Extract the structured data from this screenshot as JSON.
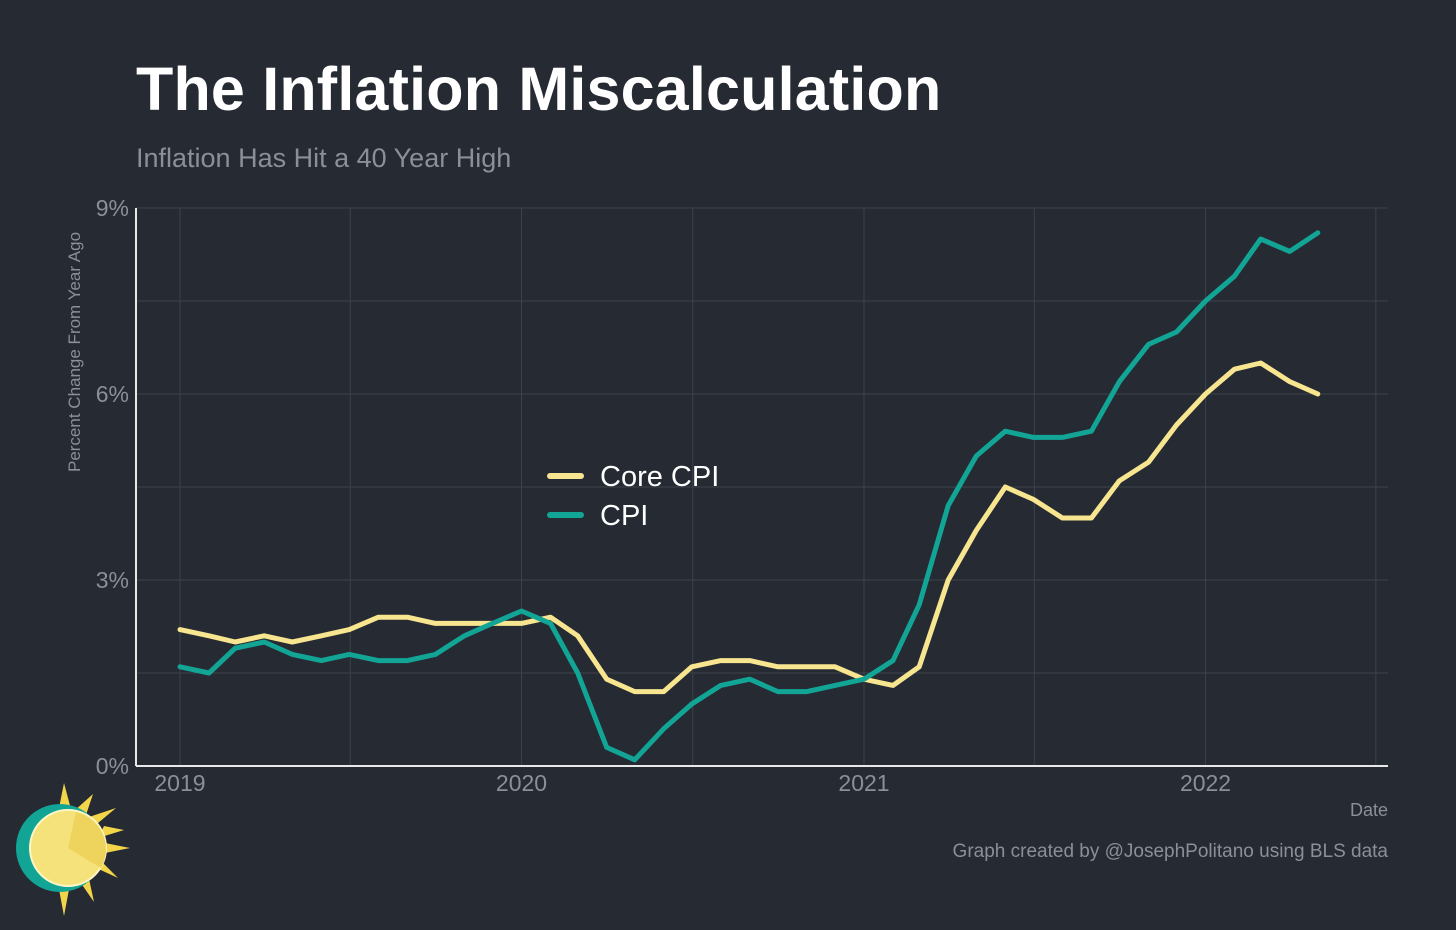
{
  "title": "The Inflation Miscalculation",
  "subtitle": "Inflation Has Hit a 40 Year High",
  "caption": "Graph created by @JosephPolitano using BLS data",
  "chart_data": {
    "type": "line",
    "xlabel": "Date",
    "ylabel": "Percent Change From Year Ago",
    "x_start": "2019-01",
    "x_end": "2022-05",
    "xlim": [
      "2018-11-15",
      "2022-07-15"
    ],
    "ylim": [
      0,
      9
    ],
    "yticks": [
      0,
      3,
      6,
      9
    ],
    "ytick_labels": [
      "0%",
      "3%",
      "6%",
      "9%"
    ],
    "xticks": [
      "2019-01-01",
      "2020-01-01",
      "2021-01-01",
      "2022-01-01"
    ],
    "xtick_labels": [
      "2019",
      "2020",
      "2021",
      "2022"
    ],
    "grid": true,
    "legend_position": "center",
    "series": [
      {
        "name": "Core CPI",
        "color": "#f8e58f",
        "values": [
          2.2,
          2.1,
          2.0,
          2.1,
          2.0,
          2.1,
          2.2,
          2.4,
          2.4,
          2.3,
          2.3,
          2.3,
          2.3,
          2.4,
          2.1,
          1.4,
          1.2,
          1.2,
          1.6,
          1.7,
          1.7,
          1.6,
          1.6,
          1.6,
          1.4,
          1.3,
          1.6,
          3.0,
          3.8,
          4.5,
          4.3,
          4.0,
          4.0,
          4.6,
          4.9,
          5.5,
          6.0,
          6.4,
          6.5,
          6.2,
          6.0
        ]
      },
      {
        "name": "CPI",
        "color": "#12a596",
        "values": [
          1.6,
          1.5,
          1.9,
          2.0,
          1.8,
          1.7,
          1.8,
          1.7,
          1.7,
          1.8,
          2.1,
          2.3,
          2.5,
          2.3,
          1.5,
          0.3,
          0.1,
          0.6,
          1.0,
          1.3,
          1.4,
          1.2,
          1.2,
          1.3,
          1.4,
          1.7,
          2.6,
          4.2,
          5.0,
          5.4,
          5.3,
          5.3,
          5.4,
          6.2,
          6.8,
          7.0,
          7.5,
          7.9,
          8.5,
          8.3,
          8.6
        ]
      }
    ]
  },
  "logo": {
    "name": "sun-logo"
  }
}
